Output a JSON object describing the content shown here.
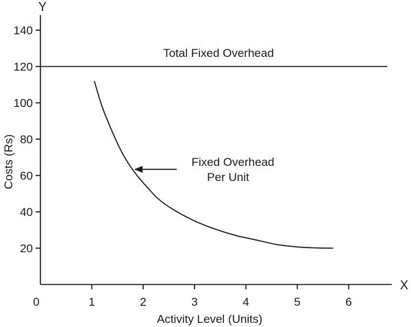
{
  "chart_data": {
    "type": "line",
    "title": "",
    "xlabel": "Activity Level (Units)",
    "ylabel": "Costs (Rs)",
    "x_axis_letter": "X",
    "y_axis_letter": "Y",
    "origin_label": "0",
    "xlim": [
      0,
      7
    ],
    "ylim": [
      0,
      145
    ],
    "x_ticks": [
      1,
      2,
      3,
      4,
      5,
      6
    ],
    "y_ticks": [
      20,
      40,
      60,
      80,
      100,
      120,
      140
    ],
    "grid": false,
    "legend": "none",
    "series": [
      {
        "label": "Total Fixed Overhead",
        "kind": "horizontal",
        "y": 120,
        "x_range": [
          0,
          6.75
        ]
      },
      {
        "label_lines": [
          "Fixed Overhead",
          "Per Unit"
        ],
        "kind": "curve",
        "points": [
          [
            1.05,
            112
          ],
          [
            1.2,
            98
          ],
          [
            1.4,
            84
          ],
          [
            1.6,
            72
          ],
          [
            1.8,
            63
          ],
          [
            2.0,
            56
          ],
          [
            2.3,
            47
          ],
          [
            2.6,
            41
          ],
          [
            3.0,
            35
          ],
          [
            3.4,
            30.5
          ],
          [
            3.8,
            27
          ],
          [
            4.2,
            24.5
          ],
          [
            4.6,
            22
          ],
          [
            5.0,
            20.7
          ],
          [
            5.4,
            20.1
          ],
          [
            5.7,
            20
          ]
        ],
        "annotation_points_to": [
          1.8,
          63
        ]
      }
    ]
  }
}
